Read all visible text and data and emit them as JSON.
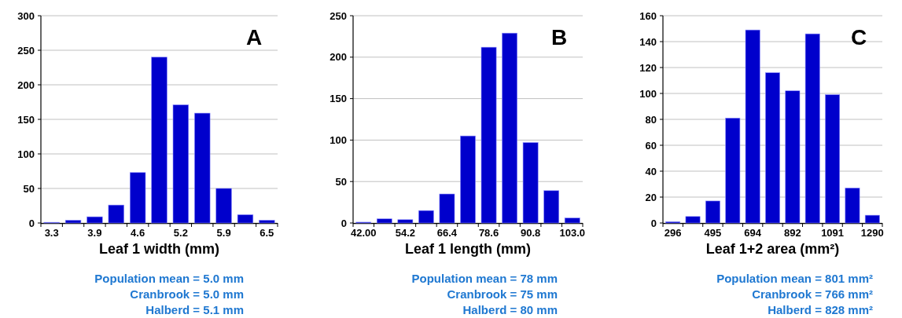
{
  "chart_data": [
    {
      "type": "bar",
      "title": "A",
      "xlabel": "Leaf 1 width (mm)",
      "categories": [
        "3.3",
        null,
        "3.9",
        null,
        "4.6",
        null,
        "5.2",
        null,
        "5.9",
        null,
        "6.5"
      ],
      "values": [
        1,
        4,
        9,
        26,
        73,
        240,
        171,
        159,
        50,
        12,
        4
      ],
      "color": "#0000cc",
      "ylim": [
        0,
        300
      ],
      "yticks": [
        0,
        50,
        100,
        150,
        200,
        250,
        300
      ],
      "grid": "y",
      "annotations": [
        "Population mean = 5.0 mm",
        "Cranbrook = 5.0 mm",
        "Halberd = 5.1 mm"
      ]
    },
    {
      "type": "bar",
      "title": "B",
      "xlabel": "Leaf 1 length (mm)",
      "categories": [
        "42.00",
        null,
        "54.2",
        null,
        "66.4",
        null,
        "78.6",
        null,
        "90.8",
        null,
        "103.0"
      ],
      "values": [
        1,
        5,
        4,
        15,
        35,
        105,
        212,
        229,
        97,
        39,
        6
      ],
      "color": "#0000cc",
      "ylim": [
        0,
        250
      ],
      "yticks": [
        0,
        50,
        100,
        150,
        200,
        250
      ],
      "grid": "y",
      "annotations": [
        "Population mean = 78 mm",
        "Cranbrook = 75 mm",
        "Halberd = 80 mm"
      ]
    },
    {
      "type": "bar",
      "title": "C",
      "xlabel": "Leaf 1+2 area (mm²)",
      "categories": [
        "296",
        null,
        "495",
        null,
        "694",
        null,
        "892",
        null,
        "1091",
        null,
        "1290"
      ],
      "values": [
        1,
        5,
        17,
        81,
        149,
        116,
        102,
        146,
        99,
        27,
        6
      ],
      "color": "#0000cc",
      "ylim": [
        0,
        160
      ],
      "yticks": [
        0,
        20,
        40,
        60,
        80,
        100,
        120,
        140,
        160
      ],
      "grid": "y",
      "annotations": [
        "Population mean = 801 mm²",
        "Cranbrook = 766 mm²",
        "Halberd = 828 mm²"
      ]
    }
  ]
}
